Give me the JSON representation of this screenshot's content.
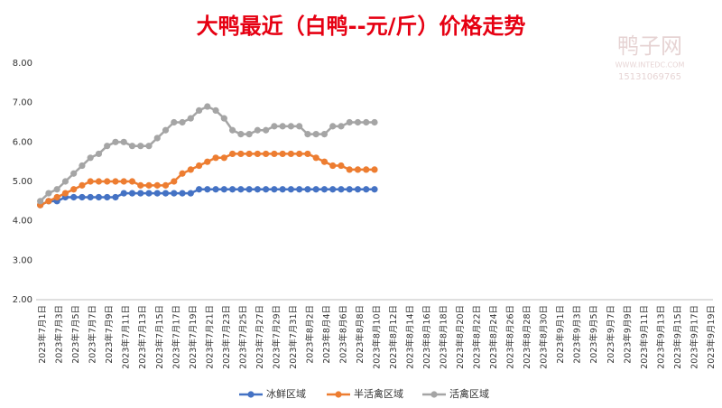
{
  "chart_data": {
    "type": "line",
    "title": "大鸭最近（白鸭--元/斤）价格走势",
    "watermark": [
      "鸭子网",
      "WWW.INTEDC.COM",
      "15131069765"
    ],
    "categories": [
      "2023年7月1日",
      null,
      "2023年7月3日",
      null,
      "2023年7月5日",
      null,
      "2023年7月7日",
      null,
      "2023年7月9日",
      null,
      "2023年7月11日",
      null,
      "2023年7月13日",
      null,
      "2023年7月15日",
      null,
      "2023年7月17日",
      null,
      "2023年7月19日",
      null,
      "2023年7月21日",
      null,
      "2023年7月23日",
      null,
      "2023年7月25日",
      null,
      "2023年7月27日",
      null,
      "2023年7月29日",
      null,
      "2023年7月31日",
      null,
      "2023年8月2日",
      null,
      "2023年8月4日",
      null,
      "2023年8月6日",
      null,
      "2023年8月8日",
      null,
      "2023年8月10日",
      null,
      "2023年8月12日",
      null,
      "2023年8月14日",
      null,
      "2023年8月16日",
      null,
      "2023年8月18日",
      null,
      "2023年8月20日",
      null,
      "2023年8月22日",
      null,
      "2023年8月24日",
      null,
      "2023年8月26日",
      null,
      "2023年8月28日",
      null,
      "2023年8月30日",
      null,
      "2023年9月1日",
      null,
      "2023年9月3日",
      null,
      "2023年9月5日",
      null,
      "2023年9月7日",
      null,
      "2023年9月9日",
      null,
      "2023年9月11日",
      null,
      "2023年9月13日",
      null,
      "2023年9月15日",
      null,
      "2023年9月17日",
      null,
      "2023年9月19日"
    ],
    "series": [
      {
        "name": "冰鲜区域",
        "color": "#4472c4",
        "values": [
          4.4,
          4.5,
          4.5,
          4.6,
          4.6,
          4.6,
          4.6,
          4.6,
          4.6,
          4.6,
          4.7,
          4.7,
          4.7,
          4.7,
          4.7,
          4.7,
          4.7,
          4.7,
          4.7,
          4.8,
          4.8,
          4.8,
          4.8,
          4.8,
          4.8,
          4.8,
          4.8,
          4.8,
          4.8,
          4.8,
          4.8,
          4.8,
          4.8,
          4.8,
          4.8,
          4.8,
          4.8,
          4.8,
          4.8,
          4.8,
          4.8,
          null,
          null,
          null,
          null,
          null,
          null,
          null,
          null,
          null,
          null,
          null,
          null,
          null,
          null,
          null,
          null,
          null,
          null,
          null,
          null,
          null,
          null,
          null,
          null,
          null,
          null,
          null,
          null,
          null,
          null,
          null,
          null,
          null,
          null,
          null,
          null,
          null,
          null,
          null,
          null
        ]
      },
      {
        "name": "半活禽区域",
        "color": "#ed7d31",
        "values": [
          4.4,
          4.5,
          4.6,
          4.7,
          4.8,
          4.9,
          5.0,
          5.0,
          5.0,
          5.0,
          5.0,
          5.0,
          4.9,
          4.9,
          4.9,
          4.9,
          5.0,
          5.2,
          5.3,
          5.4,
          5.5,
          5.6,
          5.6,
          5.7,
          5.7,
          5.7,
          5.7,
          5.7,
          5.7,
          5.7,
          5.7,
          5.7,
          5.7,
          5.6,
          5.5,
          5.4,
          5.4,
          5.3,
          5.3,
          5.3,
          5.3,
          null,
          null,
          null,
          null,
          null,
          null,
          null,
          null,
          null,
          null,
          null,
          null,
          null,
          null,
          null,
          null,
          null,
          null,
          null,
          null,
          null,
          null,
          null,
          null,
          null,
          null,
          null,
          null,
          null,
          null,
          null,
          null,
          null,
          null,
          null,
          null,
          null,
          null,
          null,
          null
        ]
      },
      {
        "name": "活禽区域",
        "color": "#a5a5a5",
        "values": [
          4.5,
          4.7,
          4.8,
          5.0,
          5.2,
          5.4,
          5.6,
          5.7,
          5.9,
          6.0,
          6.0,
          5.9,
          5.9,
          5.9,
          6.1,
          6.3,
          6.5,
          6.5,
          6.6,
          6.8,
          6.9,
          6.8,
          6.6,
          6.3,
          6.2,
          6.2,
          6.3,
          6.3,
          6.4,
          6.4,
          6.4,
          6.4,
          6.2,
          6.2,
          6.2,
          6.4,
          6.4,
          6.5,
          6.5,
          6.5,
          6.5,
          null,
          null,
          null,
          null,
          null,
          null,
          null,
          null,
          null,
          null,
          null,
          null,
          null,
          null,
          null,
          null,
          null,
          null,
          null,
          null,
          null,
          null,
          null,
          null,
          null,
          null,
          null,
          null,
          null,
          null,
          null,
          null,
          null,
          null,
          null,
          null,
          null,
          null,
          null,
          null
        ]
      }
    ],
    "ylim": [
      2,
      8
    ],
    "yticks": [
      {
        "value": 2,
        "label": "2.00"
      },
      {
        "value": 3,
        "label": "3.00"
      },
      {
        "value": 4,
        "label": "4.00"
      },
      {
        "value": 5,
        "label": "5.00"
      },
      {
        "value": 6,
        "label": "6.00"
      },
      {
        "value": 7,
        "label": "7.00"
      },
      {
        "value": 8,
        "label": "8.00"
      }
    ],
    "grid": false,
    "legend": "bottom"
  }
}
